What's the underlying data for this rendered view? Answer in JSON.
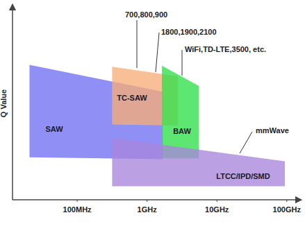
{
  "chart_data": {
    "type": "area",
    "log": "x",
    "tick_labels": "x",
    "y_label": "Q Value",
    "xlim": [
      0.012,
      150
    ],
    "ylim": [
      0,
      100
    ],
    "xticks": [
      {
        "value": 0.1,
        "label": "100MHz"
      },
      {
        "value": 1,
        "label": "1GHz"
      },
      {
        "value": 10,
        "label": "10GHz"
      },
      {
        "value": 100,
        "label": "100GHz"
      }
    ],
    "series": [
      {
        "name": "SAW",
        "color": "#6f6ff2",
        "x": [
          0.021,
          1.7
        ],
        "values": [
          70,
          56
        ],
        "low": [
          22,
          21
        ]
      },
      {
        "name": "TC-SAW",
        "color": "#f7ad78",
        "x": [
          0.32,
          2.8
        ],
        "values": [
          69,
          64
        ],
        "low": [
          39,
          38.5
        ]
      },
      {
        "name": "BAW",
        "color": "#2fe04a",
        "x": [
          1.65,
          5.6
        ],
        "values": [
          69.5,
          59
        ],
        "low": [
          21.5,
          21.5
        ]
      },
      {
        "name": "LTCC/IPD/SMD",
        "color": "#a886dc",
        "x": [
          0.32,
          95
        ],
        "values": [
          32,
          20
        ],
        "low": [
          7,
          7
        ]
      }
    ],
    "annotations": [
      "700,800,900",
      "1800,1900,2100",
      "WiFi,TD-LTE,3500, etc.",
      "mmWave"
    ]
  }
}
